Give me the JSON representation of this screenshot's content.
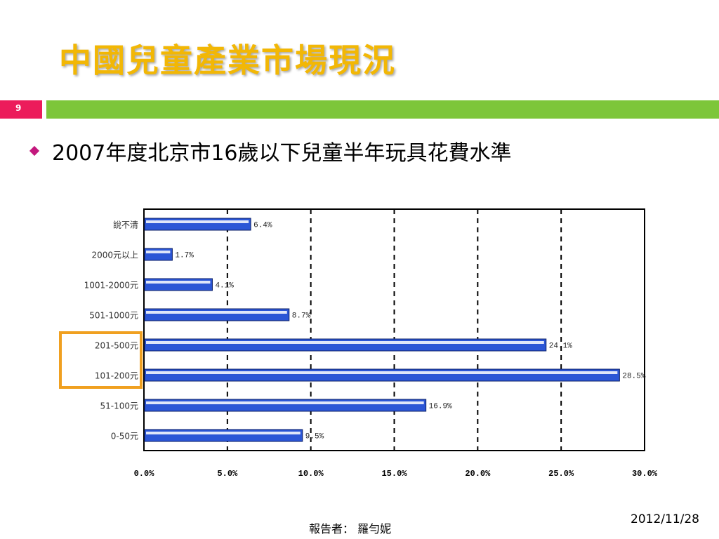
{
  "slide": {
    "title": "中國兒童產業市場現況",
    "number": "9",
    "bullet": "2007年度北京市16歲以下兒童半年玩具花費水準",
    "presenter": "報告者： 羅勻妮",
    "date": "2012/11/28"
  },
  "colors": {
    "title": "#f2b705",
    "bar": "#2b56d6",
    "highlight": "#f0a020",
    "accent_pink": "#ec1c5b",
    "accent_green": "#7dc63a",
    "bullet": "#c3187d"
  },
  "chart_data": {
    "type": "bar",
    "orientation": "horizontal",
    "categories": [
      "說不清",
      "2000元以上",
      "1001-2000元",
      "501-1000元",
      "201-500元",
      "101-200元",
      "51-100元",
      "0-50元"
    ],
    "values": [
      6.4,
      1.7,
      4.1,
      8.7,
      24.1,
      28.5,
      16.9,
      9.5
    ],
    "value_labels": [
      "6.4%",
      "1.7%",
      "4.1%",
      "8.7%",
      "24.1%",
      "28.5%",
      "16.9%",
      "9.5%"
    ],
    "highlighted_categories": [
      "201-500元",
      "101-200元"
    ],
    "xlim": [
      0,
      30
    ],
    "xticks": [
      "0.0%",
      "5.0%",
      "10.0%",
      "15.0%",
      "20.0%",
      "25.0%",
      "30.0%"
    ],
    "grid": "vertical dashed",
    "title": "",
    "xlabel": "",
    "ylabel": ""
  }
}
